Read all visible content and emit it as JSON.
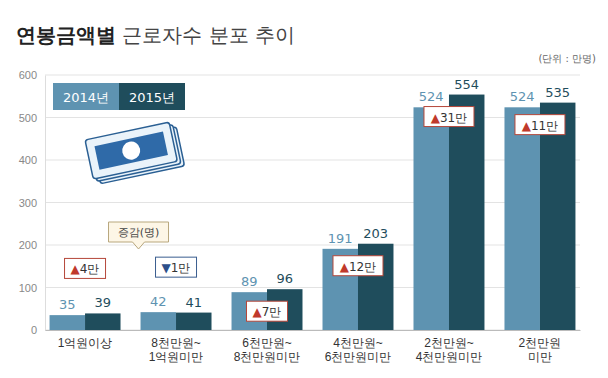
{
  "chart_data": {
    "type": "bar",
    "title": "연봉금액별 근로자수 분포 추이",
    "subtitle": "(단위 : 만명)",
    "categories": [
      "1억원이상",
      "8천만원~\n1억원미만",
      "6천만원~\n8천만원미만",
      "4천만원~\n6천만원미만",
      "2천만원~\n4천만원미만",
      "2천만원\n미만"
    ],
    "series": [
      {
        "name": "2014년",
        "color": "#5e93b1",
        "values": [
          35,
          42,
          89,
          191,
          524,
          524
        ]
      },
      {
        "name": "2015년",
        "color": "#1f4d5c",
        "values": [
          39,
          41,
          96,
          203,
          554,
          535
        ]
      }
    ],
    "ylim": [
      0,
      600
    ],
    "yticks": [
      0,
      100,
      200,
      300,
      400,
      500,
      600
    ],
    "grid": true,
    "legend": "upper left",
    "data_labels": true,
    "changes": {
      "title": "증감(명)",
      "values": [
        4,
        -1,
        7,
        12,
        31,
        11
      ],
      "value_labels": [
        "▲4만",
        "▼1만",
        "▲7만",
        "▲12만",
        "▲31만",
        "▲11만"
      ]
    }
  }
}
